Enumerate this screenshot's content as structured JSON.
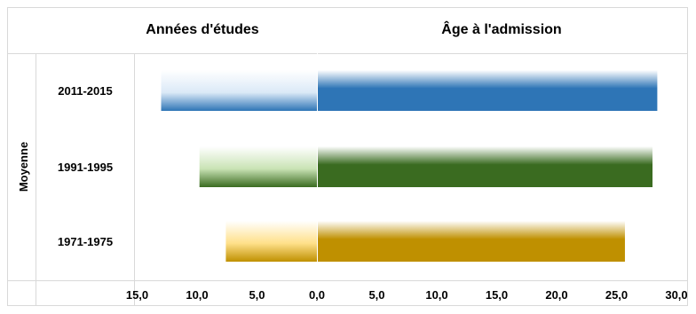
{
  "chart_data": {
    "type": "bar",
    "orientation": "horizontal-diverging",
    "group_label": "Moyenne",
    "categories": [
      "2011-2015",
      "1991-1995",
      "1971-1975"
    ],
    "series": [
      {
        "name": "Années d'études",
        "values": [
          13.0,
          9.8,
          7.6
        ],
        "direction": "left",
        "color": "#2e75b6",
        "fill_style": "gradient light-to-solid (light shades)"
      },
      {
        "name": "Âge à l'admission",
        "values": [
          28.4,
          28.0,
          25.7
        ],
        "direction": "right",
        "color": "#2e75b6",
        "fill_style": "gradient light-top to solid-bottom"
      }
    ],
    "category_colors": [
      "#2e75b6",
      "#3a6b20",
      "#bf9000"
    ],
    "category_light_colors": [
      "#dbe9f7",
      "#c9e3b5",
      "#ffe08a"
    ],
    "x_ticks": [
      "15,0",
      "10,0",
      "5,0",
      "0,0",
      "5,0",
      "10,0",
      "15,0",
      "20,0",
      "25,0",
      "30,0"
    ],
    "xlim": [
      -15,
      30
    ],
    "grid": false,
    "legend": "column headers above bars"
  }
}
